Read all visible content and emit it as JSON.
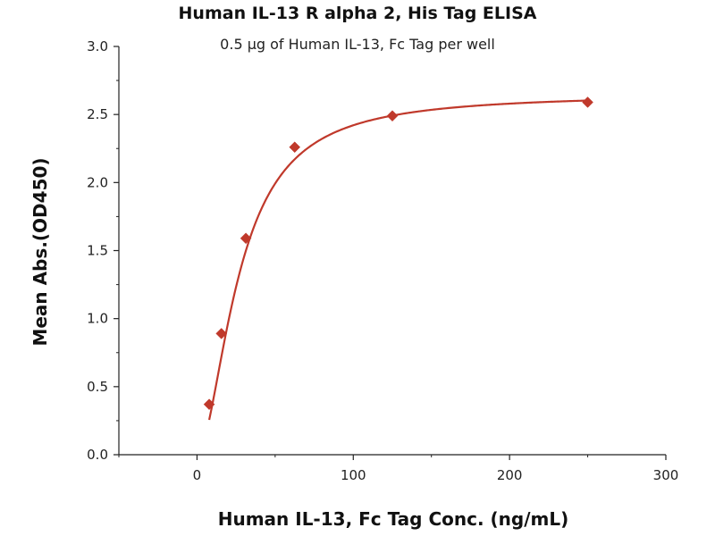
{
  "chart_data": {
    "type": "scatter",
    "title": "Human IL-13 R alpha 2, His Tag ELISA",
    "subtitle": "0.5 µg of Human IL-13, Fc Tag per well",
    "xlabel": "Human IL-13, Fc Tag Conc. (ng/mL)",
    "ylabel": "Mean Abs.(OD450)",
    "xlim": [
      -50,
      300
    ],
    "ylim": [
      0,
      3.0
    ],
    "x_ticks": [
      0,
      100,
      200,
      300
    ],
    "x_tick_labels": [
      "0",
      "100",
      "200",
      "300"
    ],
    "y_ticks": [
      0,
      0.5,
      1.0,
      1.5,
      2.0,
      2.5,
      3.0
    ],
    "y_tick_labels": [
      "0.0",
      "0.5",
      "1.0",
      "1.5",
      "2.0",
      "2.5",
      "3.0"
    ],
    "grid": false,
    "legend": "none",
    "marker": "diamond",
    "color": "#c0392b",
    "fit": "four-parameter logistic curve",
    "series": [
      {
        "x": [
          7.8,
          15.6,
          31.25,
          62.5,
          125,
          250
        ],
        "y": [
          0.37,
          0.89,
          1.59,
          2.26,
          2.49,
          2.59
        ]
      }
    ],
    "fit_params": {
      "bottom": 0.0,
      "top": 2.65,
      "ec50": 27,
      "hill": 1.8
    }
  }
}
